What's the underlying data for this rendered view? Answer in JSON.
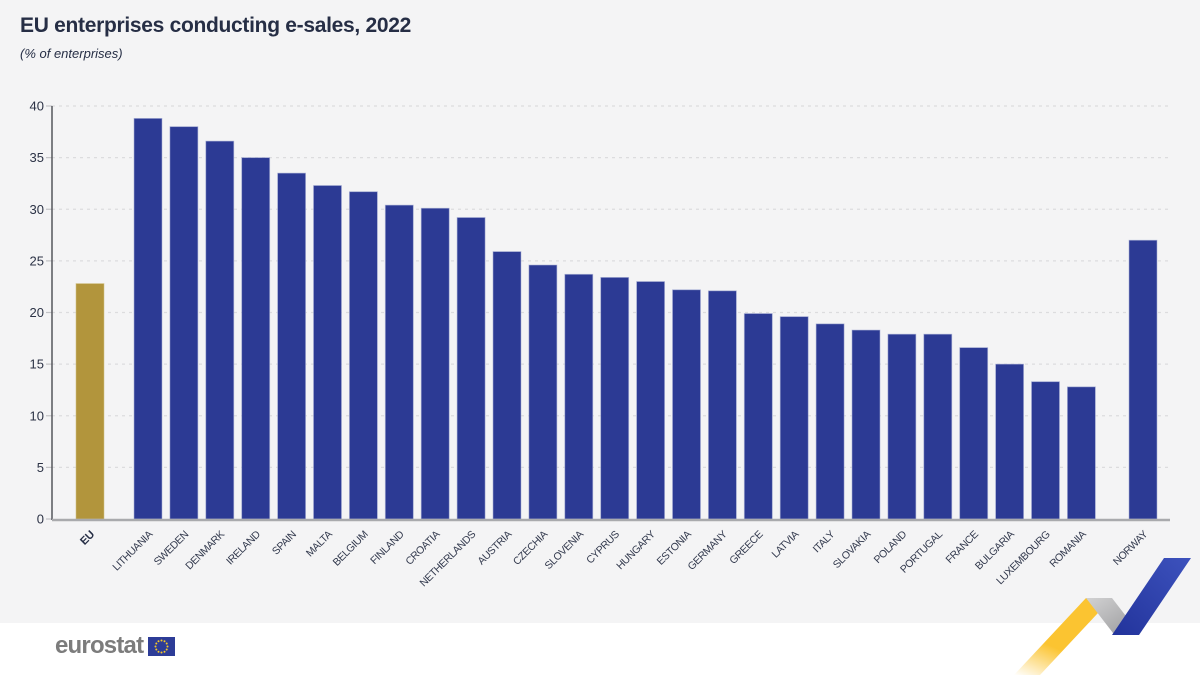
{
  "header": {
    "title": "EU enterprises conducting e-sales, 2022",
    "subtitle": "(% of enterprises)"
  },
  "chart_data": {
    "type": "bar",
    "categories": [
      "EU",
      "LITHUANIA",
      "SWEDEN",
      "DENMARK",
      "IRELAND",
      "SPAIN",
      "MALTA",
      "BELGIUM",
      "FINLAND",
      "CROATIA",
      "NETHERLANDS",
      "AUSTRIA",
      "CZECHIA",
      "SLOVENIA",
      "CYPRUS",
      "HUNGARY",
      "ESTONIA",
      "GERMANY",
      "GREECE",
      "LATVIA",
      "ITALY",
      "SLOVAKIA",
      "POLAND",
      "PORTUGAL",
      "FRANCE",
      "BULGARIA",
      "LUXEMBOURG",
      "ROMANIA",
      "NORWAY"
    ],
    "values": [
      22.8,
      38.8,
      38.0,
      36.6,
      35.0,
      33.5,
      32.3,
      31.7,
      30.4,
      30.1,
      29.2,
      25.9,
      24.6,
      23.7,
      23.4,
      23.0,
      22.2,
      22.1,
      19.9,
      19.6,
      18.9,
      18.3,
      17.9,
      17.9,
      16.6,
      15.0,
      13.3,
      12.8,
      27.0
    ],
    "highlighted_category": "EU",
    "title": "EU enterprises conducting e-sales, 2022",
    "xlabel": "",
    "ylabel": "(% of enterprises)",
    "ylim": [
      0,
      40
    ],
    "yticks": [
      0,
      5,
      10,
      15,
      20,
      25,
      30,
      35,
      40
    ],
    "grid": "horizontal-dashed",
    "legend_position": "none"
  },
  "colors": {
    "bar_blue": "#2c3a94",
    "bar_blue_edge": "#aab0d6",
    "bar_gold": "#b2953c",
    "bar_gold_edge": "#d2c184",
    "chart_background": "#f4f4f5",
    "gridline": "#dcdcde",
    "axis_line": "#55565c",
    "baseline": "#a9aaad",
    "text_dark": "#262e45",
    "ribbon_yellow": "#fbc431",
    "ribbon_gray": "#b3b3b5",
    "ribbon_blue": "#2b3eae",
    "logo_gray": "#7c7c7c",
    "flag_blue": "#2d3c97",
    "flag_star_yellow": "#f7c927"
  },
  "footer": {
    "logo_text": "eurostat"
  }
}
